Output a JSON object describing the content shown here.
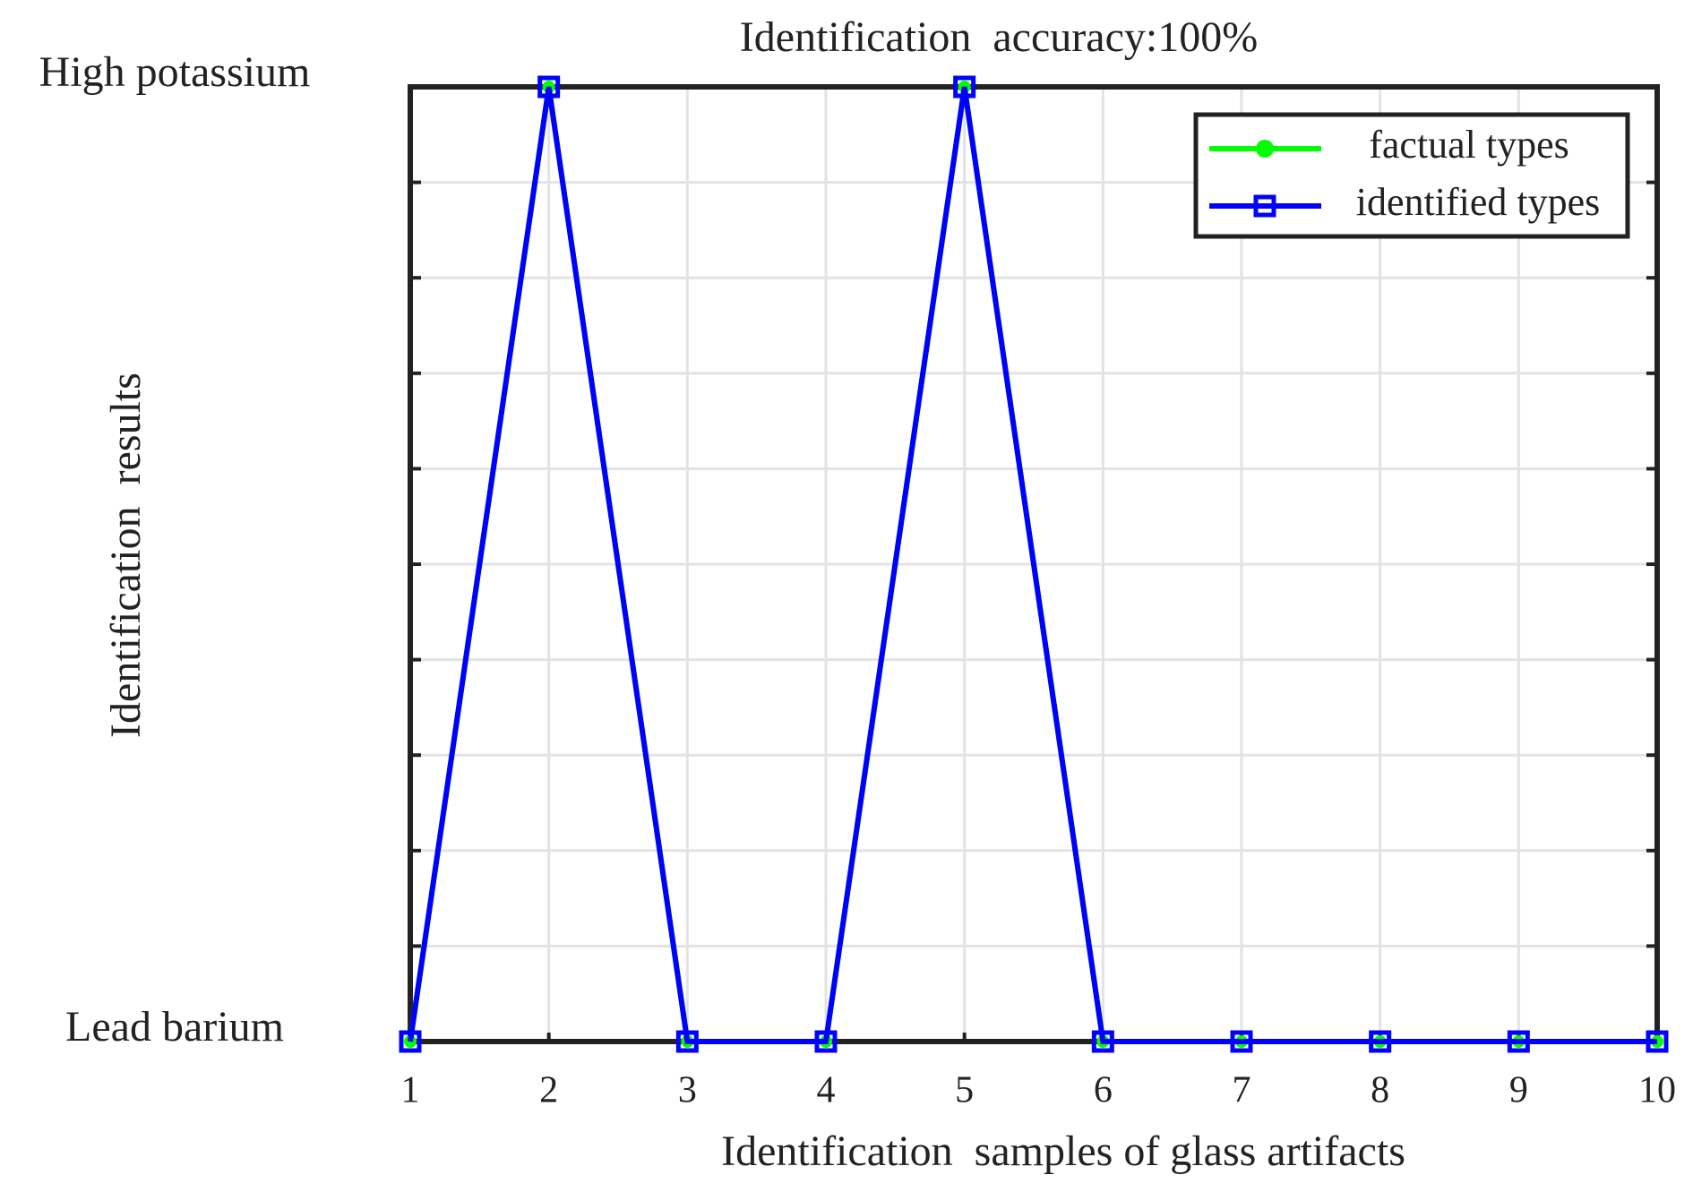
{
  "chart_data": {
    "type": "line",
    "title": "Identification  accuracy:100%",
    "xlabel": "Identification  samples of glass artifacts",
    "ylabel": "Identification  results",
    "x": [
      1,
      2,
      3,
      4,
      5,
      6,
      7,
      8,
      9,
      10
    ],
    "series": [
      {
        "name": "factual types",
        "color": "#00ff00",
        "marker": "circle",
        "values": [
          0,
          1,
          0,
          0,
          1,
          0,
          0,
          0,
          0,
          0
        ]
      },
      {
        "name": "identified types",
        "color": "#0000ff",
        "marker": "square",
        "values": [
          0,
          1,
          0,
          0,
          1,
          0,
          0,
          0,
          0,
          0
        ]
      }
    ],
    "xlim": [
      1,
      10
    ],
    "xticks": [
      1,
      2,
      3,
      4,
      5,
      6,
      7,
      8,
      9,
      10
    ],
    "ylim": [
      0,
      1
    ],
    "yticks": [
      {
        "value": 0,
        "label": "Lead barium"
      },
      {
        "value": 1,
        "label": "High potassium"
      }
    ],
    "yminor": [
      0.1,
      0.2,
      0.3,
      0.4,
      0.5,
      0.6,
      0.7,
      0.8,
      0.9
    ],
    "grid": true,
    "legend": "upper right"
  }
}
